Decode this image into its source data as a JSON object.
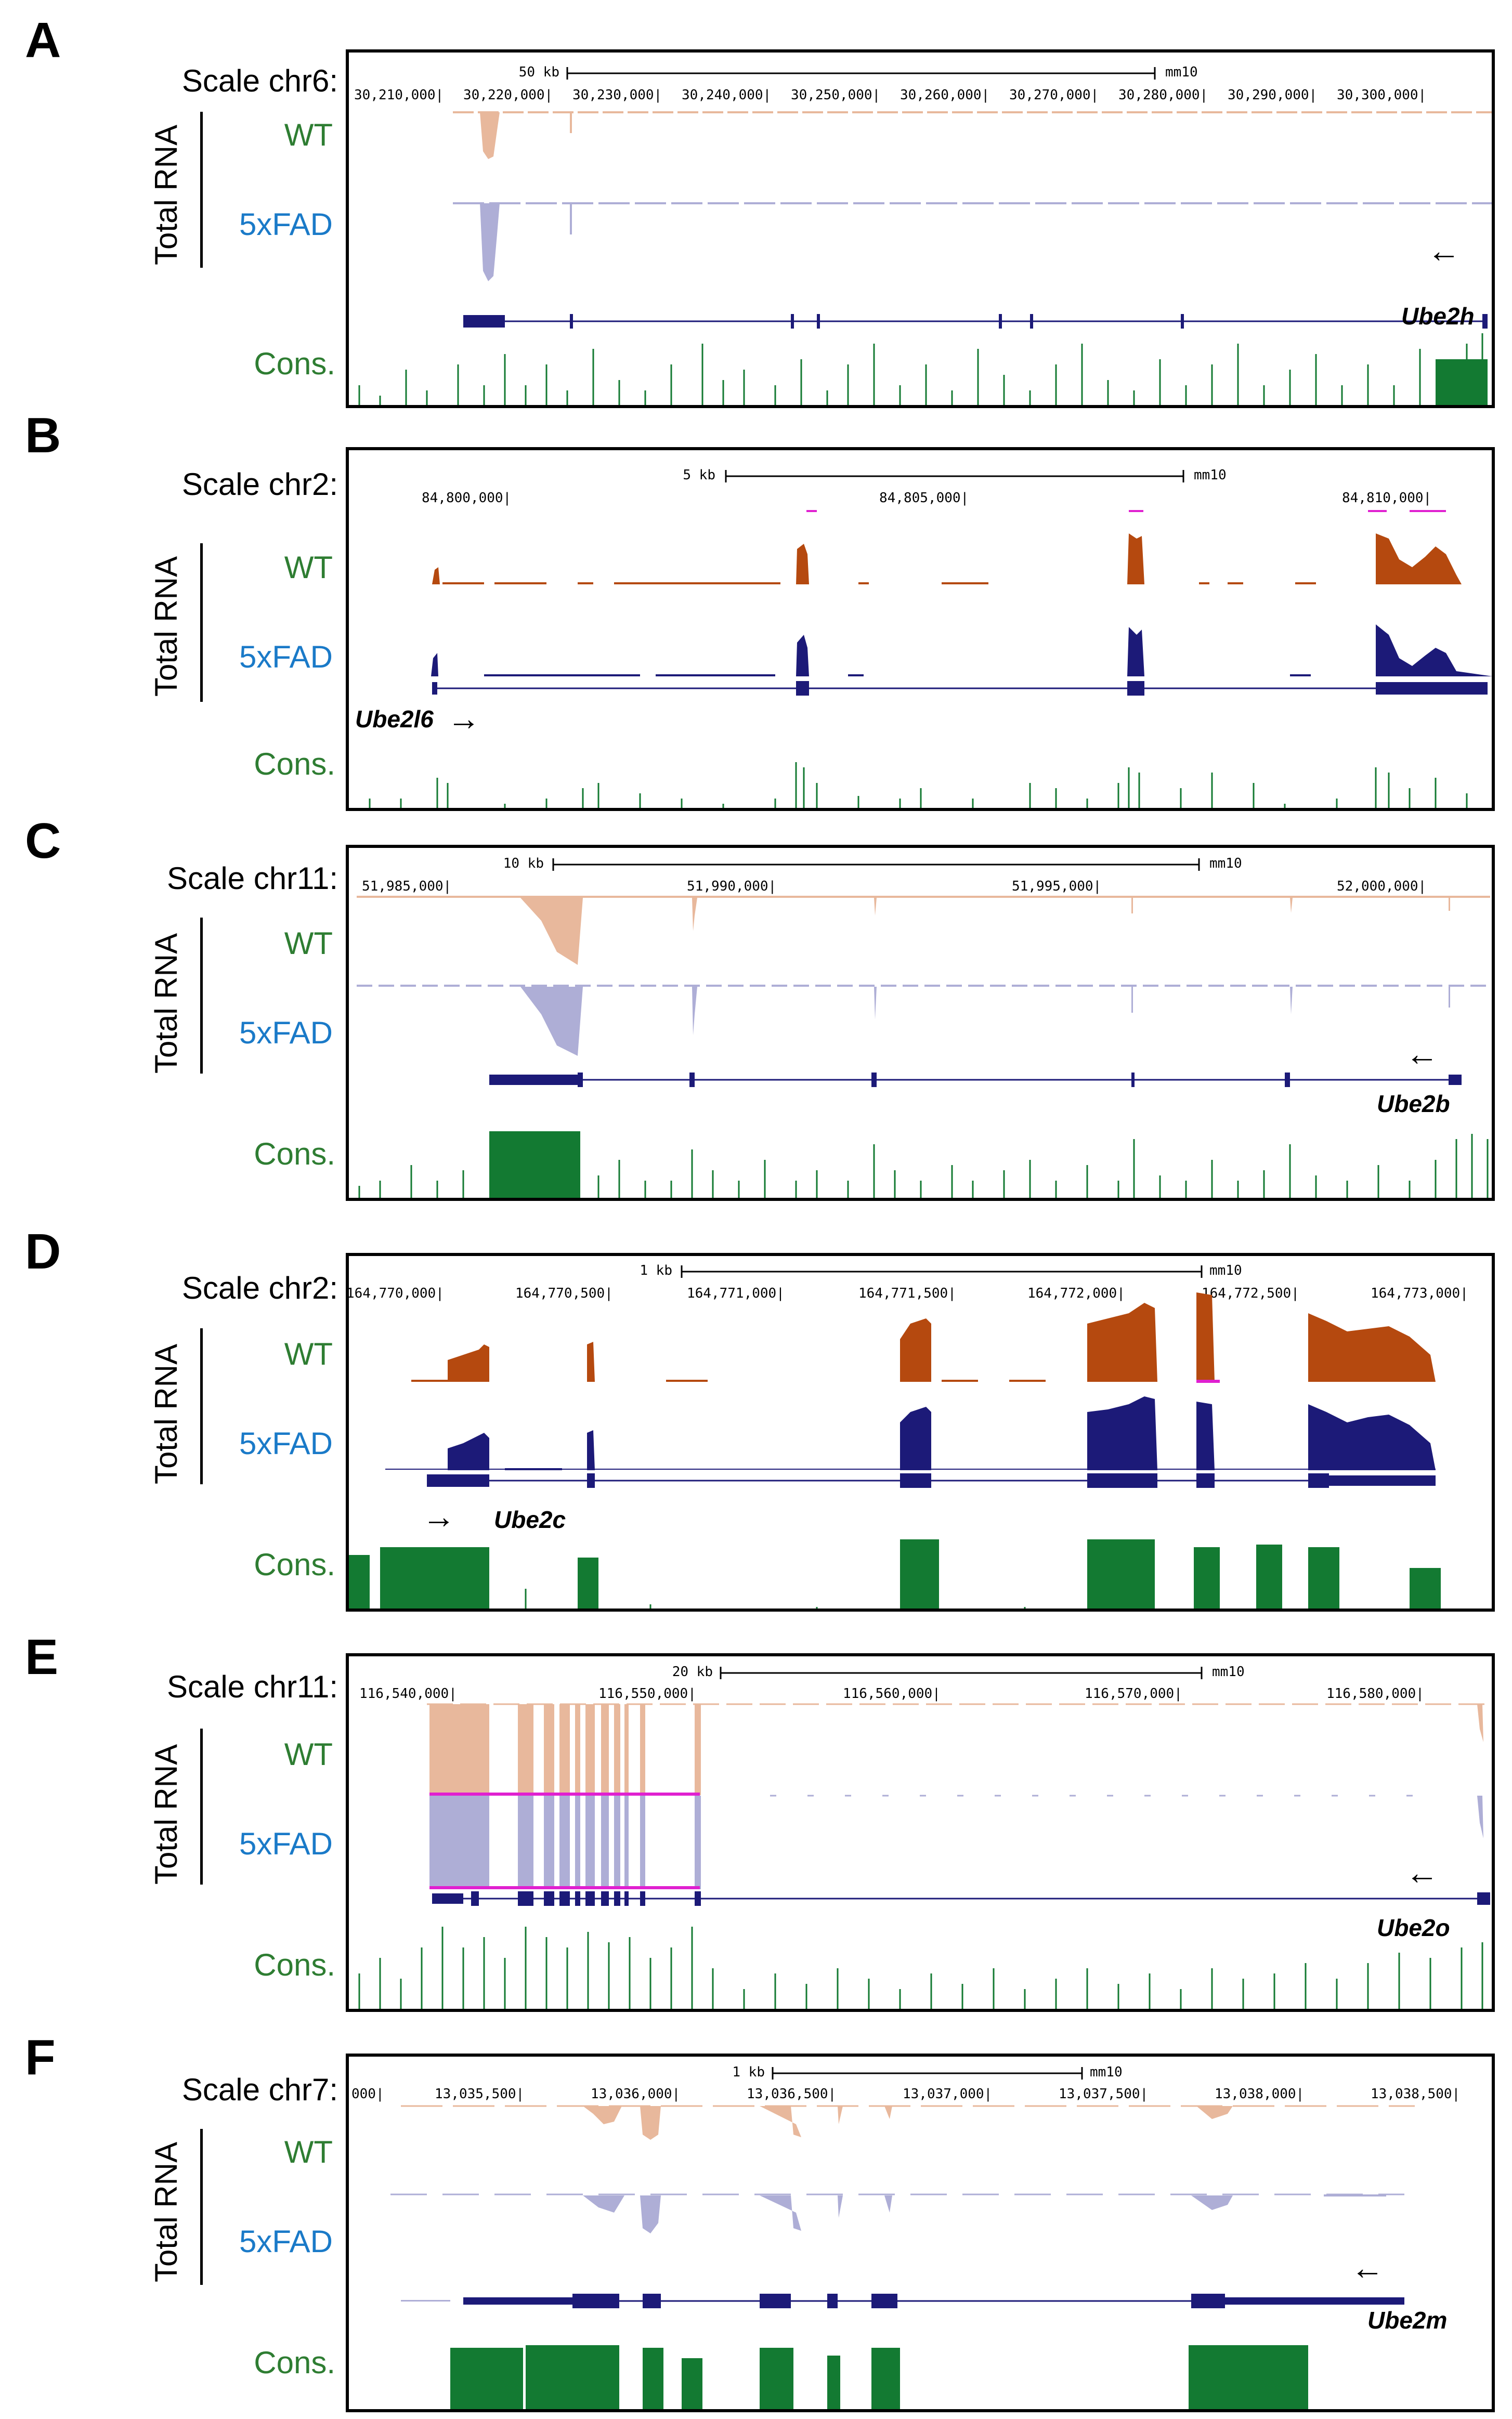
{
  "panels": [
    {
      "letter": "A",
      "scale": "Scale chr6:",
      "scalebar": "50 kb",
      "assembly": "mm10",
      "coords": [
        "30,210,000|",
        "30,220,000|",
        "30,230,000|",
        "30,240,000|",
        "30,250,000|",
        "30,260,000|",
        "30,270,000|",
        "30,280,000|",
        "30,290,000|",
        "30,300,000|"
      ],
      "wt": "WT",
      "fad": "5xFAD",
      "track": "Total RNA",
      "cons": "Cons.",
      "gene": "Ube2h",
      "direction": "left"
    },
    {
      "letter": "B",
      "scale": "Scale chr2:",
      "scalebar": "5 kb",
      "assembly": "mm10",
      "coords": [
        "84,800,000|",
        "84,805,000|",
        "84,810,000|"
      ],
      "wt": "WT",
      "fad": "5xFAD",
      "track": "Total RNA",
      "cons": "Cons.",
      "gene": "Ube2l6",
      "direction": "right"
    },
    {
      "letter": "C",
      "scale": "Scale chr11:",
      "scalebar": "10 kb",
      "assembly": "mm10",
      "coords": [
        "51,985,000|",
        "51,990,000|",
        "51,995,000|",
        "52,000,000|"
      ],
      "wt": "WT",
      "fad": "5xFAD",
      "track": "Total RNA",
      "cons": "Cons.",
      "gene": "Ube2b",
      "direction": "left"
    },
    {
      "letter": "D",
      "scale": "Scale chr2:",
      "scalebar": "1 kb",
      "assembly": "mm10",
      "coords": [
        "164,770,000|",
        "164,770,500|",
        "164,771,000|",
        "164,771,500|",
        "164,772,000|",
        "164,772,500|",
        "164,773,000|"
      ],
      "wt": "WT",
      "fad": "5xFAD",
      "track": "Total RNA",
      "cons": "Cons.",
      "gene": "Ube2c",
      "direction": "right"
    },
    {
      "letter": "E",
      "scale": "Scale chr11:",
      "scalebar": "20 kb",
      "assembly": "mm10",
      "coords": [
        "116,540,000|",
        "116,550,000|",
        "116,560,000|",
        "116,570,000|",
        "116,580,000|"
      ],
      "wt": "WT",
      "fad": "5xFAD",
      "track": "Total RNA",
      "cons": "Cons.",
      "gene": "Ube2o",
      "direction": "left"
    },
    {
      "letter": "F",
      "scale": "Scale chr7:",
      "scalebar": "1 kb",
      "assembly": "mm10",
      "coords": [
        "000|",
        "13,035,500|",
        "13,036,000|",
        "13,036,500|",
        "13,037,000|",
        "13,037,500|",
        "13,038,000|",
        "13,038,500|"
      ],
      "wt": "WT",
      "fad": "5xFAD",
      "track": "Total RNA",
      "cons": "Cons.",
      "gene": "Ube2m",
      "direction": "left"
    }
  ],
  "colors": {
    "wt_light": "#e8b89c",
    "wt_dark": "#b5490f",
    "fad_light": "#aeaed6",
    "fad_dark": "#1c1a78",
    "gene": "#1c1a78",
    "cons": "#137a32",
    "label_wt": "#2e7d32",
    "label_fad": "#1a7ac8",
    "highlight": "#e020d0"
  }
}
